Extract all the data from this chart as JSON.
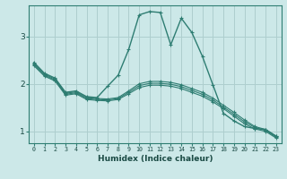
{
  "xlabel": "Humidex (Indice chaleur)",
  "ylabel": "",
  "bg_color": "#cce8e8",
  "line_color": "#2e7d72",
  "grid_color": "#aecece",
  "xlim": [
    -0.5,
    23.5
  ],
  "ylim": [
    0.75,
    3.65
  ],
  "yticks": [
    1,
    2,
    3
  ],
  "xticks": [
    0,
    1,
    2,
    3,
    4,
    5,
    6,
    7,
    8,
    9,
    10,
    11,
    12,
    13,
    14,
    15,
    16,
    17,
    18,
    19,
    20,
    21,
    22,
    23
  ],
  "series": [
    [
      2.45,
      2.22,
      2.12,
      1.82,
      1.85,
      1.73,
      1.71,
      1.95,
      2.18,
      2.72,
      3.45,
      3.52,
      3.5,
      2.82,
      3.38,
      3.08,
      2.58,
      1.98,
      1.38,
      1.22,
      1.1,
      1.06,
      1.04,
      0.9
    ],
    [
      2.42,
      2.2,
      2.1,
      1.8,
      1.83,
      1.71,
      1.69,
      1.68,
      1.71,
      1.85,
      2.0,
      2.05,
      2.05,
      2.03,
      1.98,
      1.9,
      1.82,
      1.7,
      1.55,
      1.4,
      1.24,
      1.1,
      1.04,
      0.9
    ],
    [
      2.4,
      2.18,
      2.08,
      1.78,
      1.81,
      1.69,
      1.67,
      1.66,
      1.69,
      1.82,
      1.96,
      2.01,
      2.01,
      1.99,
      1.94,
      1.86,
      1.78,
      1.66,
      1.51,
      1.36,
      1.2,
      1.08,
      1.02,
      0.88
    ],
    [
      2.38,
      2.16,
      2.06,
      1.76,
      1.79,
      1.67,
      1.65,
      1.64,
      1.67,
      1.79,
      1.92,
      1.97,
      1.97,
      1.95,
      1.9,
      1.82,
      1.74,
      1.62,
      1.48,
      1.32,
      1.16,
      1.05,
      1.0,
      0.86
    ]
  ]
}
